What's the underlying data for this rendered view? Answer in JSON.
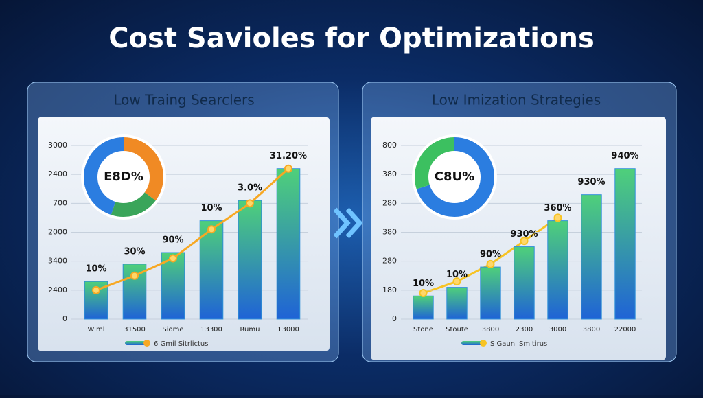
{
  "title": "Cost Savioles for Optimizations",
  "chart_data": [
    {
      "type": "bar",
      "title": "Low Traing Searclers",
      "categories": [
        "Wiml",
        "31500",
        "Siome",
        "13300",
        "Rumu",
        "13000"
      ],
      "ylim": [
        0,
        6
      ],
      "yticks": [
        {
          "value": 0,
          "label": "0"
        },
        {
          "value": 1,
          "label": "2400"
        },
        {
          "value": 2,
          "label": "3400"
        },
        {
          "value": 3,
          "label": "2000"
        },
        {
          "value": 4,
          "label": "700"
        },
        {
          "value": 5,
          "label": "2400"
        },
        {
          "value": 6,
          "label": "3000"
        }
      ],
      "series": [
        {
          "name": "6 Gmil Sitrlictus",
          "color": "#2f8fd8",
          "values": [
            1.3,
            1.9,
            2.3,
            3.4,
            4.1,
            5.2
          ],
          "value_labels": [
            "10%",
            "30%",
            "90%",
            "10%",
            "3.0%",
            "31.20%"
          ]
        }
      ],
      "line_values": [
        1.0,
        1.5,
        2.1,
        3.1,
        4.0,
        5.2
      ],
      "line_color": "#f7a823",
      "donut": {
        "label": "E8D%",
        "values": [
          35,
          20,
          45
        ],
        "colors": [
          "#f08a24",
          "#3aa55a",
          "#2b7de0"
        ]
      }
    },
    {
      "type": "bar",
      "title": "Low Imization Strategies",
      "categories": [
        "Stone",
        "Stoute",
        "3800",
        "2300",
        "3000",
        "3800",
        "22000"
      ],
      "ylim": [
        0,
        6
      ],
      "yticks": [
        {
          "value": 0,
          "label": "0"
        },
        {
          "value": 1,
          "label": "180"
        },
        {
          "value": 2,
          "label": "280"
        },
        {
          "value": 3,
          "label": "380"
        },
        {
          "value": 4,
          "label": "280"
        },
        {
          "value": 5,
          "label": "380"
        },
        {
          "value": 6,
          "label": "800"
        }
      ],
      "series": [
        {
          "name": "S Gaunl Smitirus",
          "color": "#2f8fd8",
          "values": [
            0.8,
            1.1,
            1.8,
            2.5,
            3.4,
            4.3,
            5.2
          ],
          "value_labels": [
            "10%",
            "10%",
            "90%",
            "930%",
            "360%",
            "930%",
            "940%"
          ]
        }
      ],
      "line_values": [
        0.9,
        1.3,
        1.9,
        2.7,
        3.5,
        null,
        null
      ],
      "line_color": "#f7c323",
      "donut": {
        "label": "C8U%",
        "values": [
          70,
          30
        ],
        "colors": [
          "#2b7de0",
          "#3cc060"
        ]
      }
    }
  ]
}
